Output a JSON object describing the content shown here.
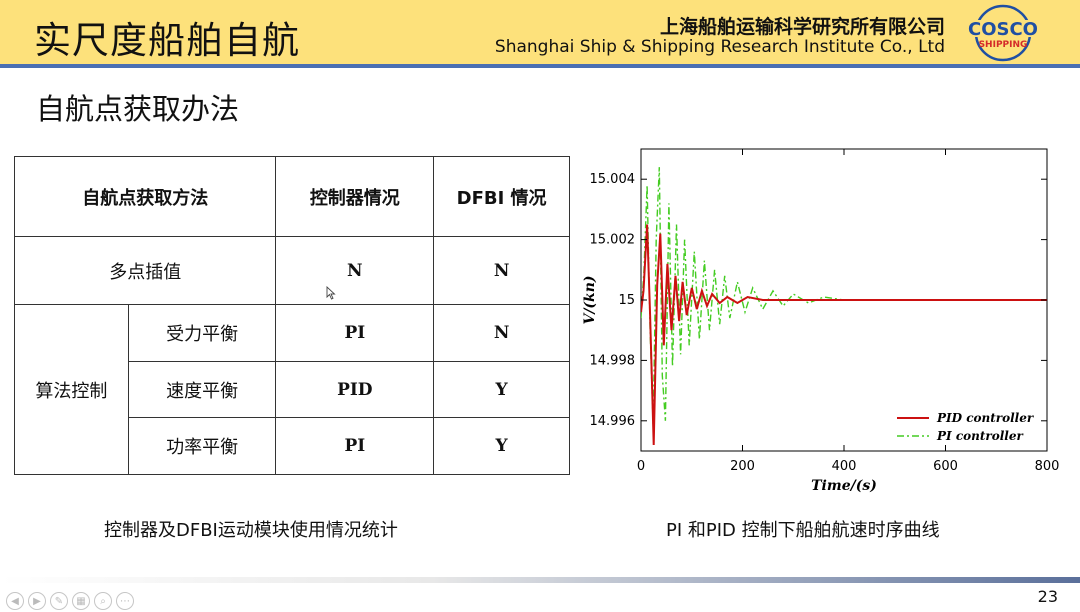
{
  "header": {
    "title": "实尺度船舶自航",
    "company_cn": "上海船舶运输科学研究所有限公司",
    "company_en": "Shanghai Ship & Shipping Research Institute Co., Ltd",
    "logo_text_top": "COSCO",
    "logo_text_bottom": "SHIPPING",
    "logo_colors": {
      "blue": "#1f4fa3",
      "red": "#d42a2a"
    }
  },
  "subtitle": "自航点获取办法",
  "table": {
    "headers": [
      "自航点获取方法",
      "控制器情况",
      "DFBI 情况"
    ],
    "row_multi": {
      "method": "多点插值",
      "controller": "N",
      "dfbi": "N"
    },
    "group_label": "算法控制",
    "group_rows": [
      {
        "method": "受力平衡",
        "controller": "PI",
        "dfbi": "N"
      },
      {
        "method": "速度平衡",
        "controller": "PID",
        "dfbi": "Y"
      },
      {
        "method": "功率平衡",
        "controller": "PI",
        "dfbi": "Y"
      }
    ]
  },
  "captions": {
    "table": "控制器及DFBI运动模块使用情况统计",
    "chart": "PI 和PID 控制下船舶航速时序曲线"
  },
  "chart_data": {
    "type": "line",
    "title": "",
    "xlabel": "Time/(s)",
    "ylabel": "V/(kn)",
    "xlim": [
      0,
      800
    ],
    "ylim": [
      14.995,
      15.005
    ],
    "x_ticks": [
      "0",
      "200",
      "400",
      "600",
      "800"
    ],
    "y_ticks": [
      "14.996",
      "14.998",
      "15",
      "15.002",
      "15.004"
    ],
    "y_tick_values": [
      14.996,
      14.998,
      15.0,
      15.002,
      15.004
    ],
    "x_tick_values": [
      0,
      200,
      400,
      600,
      800
    ],
    "legend_position": "bottom-right",
    "grid": false,
    "series": [
      {
        "name": "PID controller",
        "color": "#cc1111",
        "style": "solid",
        "x": [
          0,
          5,
          12,
          18,
          25,
          32,
          38,
          45,
          52,
          60,
          68,
          75,
          82,
          90,
          100,
          110,
          120,
          130,
          140,
          155,
          170,
          190,
          210,
          240,
          270,
          300,
          350,
          400,
          500,
          600,
          700,
          800
        ],
        "y": [
          14.9996,
          15.0003,
          15.0025,
          14.9995,
          14.9952,
          15.0005,
          15.0022,
          14.9985,
          15.0012,
          14.999,
          15.0008,
          14.9993,
          15.0006,
          14.9995,
          15.0004,
          14.9997,
          15.0003,
          14.9998,
          15.0002,
          14.9999,
          15.0001,
          14.9999,
          15.0001,
          15.0,
          15.0,
          15.0,
          15.0,
          15.0,
          15.0,
          15.0,
          15.0,
          15.0
        ]
      },
      {
        "name": "PI controller",
        "color": "#44cc22",
        "style": "dashdot",
        "x": [
          0,
          6,
          12,
          18,
          24,
          30,
          36,
          42,
          48,
          55,
          62,
          70,
          78,
          86,
          95,
          105,
          115,
          125,
          135,
          145,
          155,
          165,
          175,
          190,
          205,
          220,
          240,
          260,
          280,
          300,
          330,
          360,
          400,
          450,
          500,
          600,
          700,
          800
        ],
        "y": [
          14.9994,
          15.001,
          15.0038,
          14.999,
          14.9958,
          15.002,
          15.0044,
          14.9975,
          14.996,
          15.0032,
          14.9978,
          15.0025,
          14.9982,
          15.002,
          14.9985,
          15.0016,
          14.9987,
          15.0013,
          14.999,
          15.001,
          14.9992,
          15.0008,
          14.9994,
          15.0006,
          14.9996,
          15.0004,
          14.9997,
          15.0003,
          14.9998,
          15.0002,
          14.9999,
          15.0001,
          15.0,
          15.0,
          15.0,
          15.0,
          15.0,
          15.0
        ]
      }
    ]
  },
  "footer": {
    "page_number": "23",
    "nav_icons": [
      "prev-icon",
      "next-icon",
      "pen-icon",
      "slides-icon",
      "zoom-icon",
      "more-icon"
    ]
  }
}
